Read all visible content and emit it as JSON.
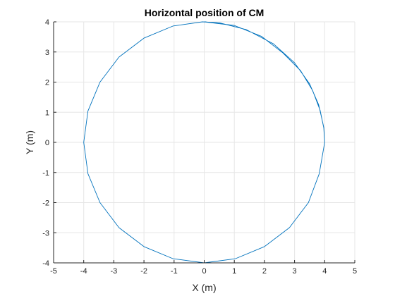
{
  "chart_data": {
    "type": "line",
    "title": "Horizontal position of CM",
    "xlabel": "X (m)",
    "ylabel": "Y (m)",
    "xlim": [
      -5,
      5
    ],
    "ylim": [
      -4,
      4
    ],
    "xticks": [
      -5,
      -4,
      -3,
      -2,
      -1,
      0,
      1,
      2,
      3,
      4,
      5
    ],
    "yticks": [
      -4,
      -3,
      -2,
      -1,
      0,
      1,
      2,
      3,
      4
    ],
    "grid": true,
    "legend": "none",
    "series": [
      {
        "color": "#0072BD",
        "x": [
          0.0,
          1.0,
          1.9,
          2.6,
          3.2,
          3.6,
          3.85,
          3.97,
          4.0,
          3.82,
          3.46,
          2.83,
          2.0,
          1.04,
          0.0,
          -1.04,
          -2.0,
          -2.83,
          -3.46,
          -3.86,
          -4.0,
          -3.86,
          -3.46,
          -2.83,
          -2.0,
          -1.04,
          -0.06,
          0.5,
          1.4,
          2.3,
          3.0,
          3.5,
          3.8,
          3.97,
          4.0
        ],
        "y": [
          4.0,
          3.88,
          3.52,
          2.98,
          2.38,
          1.72,
          1.06,
          0.48,
          0.0,
          -1.04,
          -2.0,
          -2.83,
          -3.46,
          -3.86,
          -4.0,
          -3.86,
          -3.46,
          -2.83,
          -2.0,
          -1.04,
          0.0,
          1.04,
          2.0,
          2.83,
          3.46,
          3.86,
          4.0,
          3.97,
          3.74,
          3.27,
          2.64,
          1.94,
          1.25,
          0.5,
          0.0
        ]
      }
    ]
  },
  "colors": {
    "line": "#0072BD",
    "grid": "#e6e6e6",
    "axis": "#262626"
  }
}
